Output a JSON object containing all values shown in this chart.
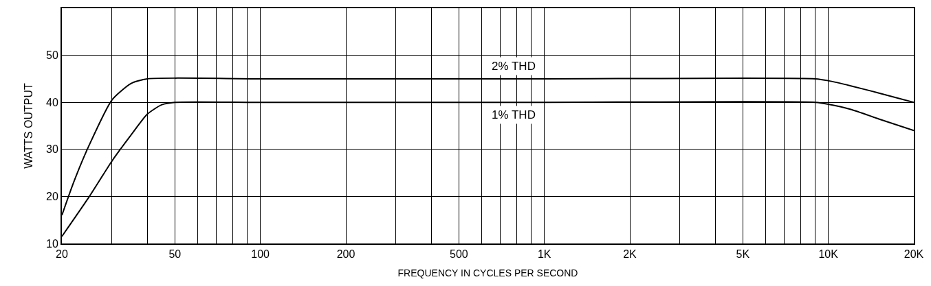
{
  "chart_data": {
    "type": "line",
    "xlabel": "FREQUENCY IN CYCLES PER SECOND",
    "ylabel": "WATTS OUTPUT",
    "log": "x",
    "grid": true,
    "legend": false,
    "marker": "none",
    "line_style": "solid",
    "xlim": [
      20,
      20000
    ],
    "ylim": [
      10,
      60
    ],
    "xticks": [
      20,
      {
        "value": 30,
        "label": null
      },
      {
        "value": 40,
        "label": null
      },
      50,
      {
        "value": 60,
        "label": null
      },
      {
        "value": 70,
        "label": null
      },
      {
        "value": 80,
        "label": null
      },
      {
        "value": 90,
        "label": null
      },
      100,
      200,
      {
        "value": 300,
        "label": null
      },
      {
        "value": 400,
        "label": null
      },
      500,
      {
        "value": 600,
        "label": null
      },
      {
        "value": 700,
        "label": null
      },
      {
        "value": 800,
        "label": null
      },
      {
        "value": 900,
        "label": null
      },
      {
        "value": 1000,
        "label": "1K"
      },
      {
        "value": 2000,
        "label": "2K"
      },
      {
        "value": 3000,
        "label": null
      },
      {
        "value": 4000,
        "label": null
      },
      {
        "value": 5000,
        "label": "5K"
      },
      {
        "value": 6000,
        "label": null
      },
      {
        "value": 7000,
        "label": null
      },
      {
        "value": 8000,
        "label": null
      },
      {
        "value": 9000,
        "label": null
      },
      {
        "value": 10000,
        "label": "10K"
      },
      {
        "value": 20000,
        "label": "20K"
      }
    ],
    "yticks": [
      10,
      20,
      30,
      40,
      50,
      {
        "value": 60,
        "label": null
      }
    ],
    "series": [
      {
        "name": "2% THD",
        "color": "#000000",
        "x": [
          20,
          22,
          25,
          30,
          35,
          40,
          100,
          1000,
          9000,
          10000,
          12000,
          15000,
          20000
        ],
        "values": [
          16,
          23,
          31,
          40.5,
          44,
          45,
          45,
          45,
          45,
          44.6,
          43.5,
          42,
          40
        ]
      },
      {
        "name": "1% THD",
        "color": "#000000",
        "x": [
          20,
          25,
          30,
          35,
          40,
          45,
          50,
          100,
          1000,
          9000,
          10000,
          12000,
          15000,
          20000
        ],
        "values": [
          11.5,
          20,
          27.5,
          33,
          37.5,
          39.5,
          40,
          40,
          40,
          40,
          39.6,
          38.5,
          36.5,
          34
        ]
      }
    ]
  }
}
